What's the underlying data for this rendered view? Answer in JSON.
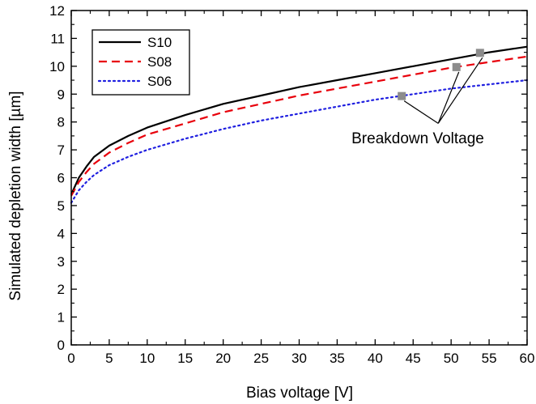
{
  "chart_data": {
    "type": "line",
    "title": "",
    "xlabel": "Bias voltage [V]",
    "ylabel": "Simulated depletion width [µm]",
    "xlim": [
      0,
      60
    ],
    "ylim": [
      0,
      12
    ],
    "xticks": [
      "0",
      "5",
      "10",
      "15",
      "20",
      "25",
      "30",
      "35",
      "40",
      "45",
      "50",
      "55",
      "60"
    ],
    "yticks": [
      "0",
      "1",
      "2",
      "3",
      "4",
      "5",
      "6",
      "7",
      "8",
      "9",
      "10",
      "11",
      "12"
    ],
    "grid": false,
    "legend_position": "top-left",
    "series": [
      {
        "name": "S10",
        "color": "#000000",
        "line_style": "solid",
        "x": [
          0,
          1,
          2,
          3,
          5,
          7.5,
          10,
          15,
          20,
          25,
          30,
          35,
          40,
          45,
          50,
          55,
          60
        ],
        "y": [
          5.4,
          6.0,
          6.4,
          6.75,
          7.15,
          7.5,
          7.8,
          8.25,
          8.65,
          8.95,
          9.25,
          9.5,
          9.75,
          10.0,
          10.25,
          10.5,
          10.7
        ]
      },
      {
        "name": "S08",
        "color": "#e8000b",
        "line_style": "dashed",
        "x": [
          0,
          1,
          2,
          3,
          5,
          7.5,
          10,
          15,
          20,
          25,
          30,
          35,
          40,
          45,
          50,
          55,
          60
        ],
        "y": [
          5.35,
          5.85,
          6.2,
          6.5,
          6.9,
          7.25,
          7.55,
          7.95,
          8.35,
          8.65,
          8.95,
          9.2,
          9.45,
          9.7,
          9.95,
          10.15,
          10.35
        ]
      },
      {
        "name": "S06",
        "color": "#1f1fe0",
        "line_style": "dotted",
        "x": [
          0,
          1,
          2,
          3,
          5,
          7.5,
          10,
          15,
          20,
          25,
          30,
          35,
          40,
          45,
          50,
          55,
          60
        ],
        "y": [
          5.1,
          5.55,
          5.85,
          6.1,
          6.45,
          6.75,
          7.0,
          7.4,
          7.75,
          8.05,
          8.3,
          8.55,
          8.8,
          9.0,
          9.2,
          9.35,
          9.5
        ]
      }
    ],
    "markers": [
      {
        "x": 43.5,
        "y": 8.93
      },
      {
        "x": 50.7,
        "y": 9.97
      },
      {
        "x": 53.8,
        "y": 10.48
      }
    ],
    "marker_color": "#8c8c8c",
    "annotation": {
      "text": "Breakdown Voltage"
    }
  }
}
